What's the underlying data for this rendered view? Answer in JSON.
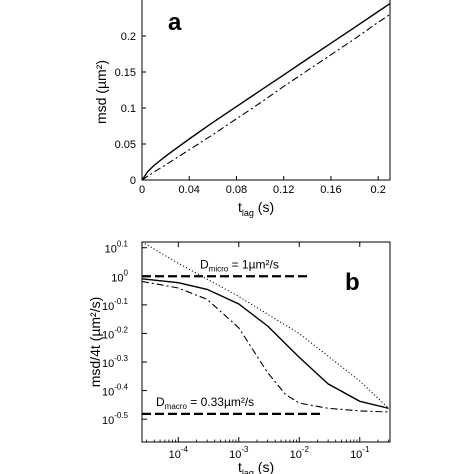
{
  "chart_data": [
    {
      "type": "line",
      "panel_label": "a",
      "xlabel_main": "t",
      "xlabel_sub": "lag",
      "xlabel_unit": "(s)",
      "ylabel": "msd  (µm²)",
      "xlim": [
        0,
        0.21
      ],
      "ylim": [
        0,
        0.25
      ],
      "xticks": [
        0,
        0.04,
        0.08,
        0.12,
        0.16,
        0.2
      ],
      "xtick_labels": [
        "0",
        "0.04",
        "0.08",
        "0.12",
        "0.16",
        "0.2"
      ],
      "yticks": [
        0,
        0.05,
        0.1,
        0.15,
        0.2
      ],
      "ytick_labels": [
        "0",
        "0.05",
        "0.1",
        "0.15",
        "0.2"
      ],
      "series": [
        {
          "style": "solid",
          "x": [
            0,
            0.005,
            0.01,
            0.02,
            0.04,
            0.06,
            0.08,
            0.1,
            0.12,
            0.14,
            0.16,
            0.18,
            0.2,
            0.21
          ],
          "y": [
            0,
            0.012,
            0.02,
            0.033,
            0.057,
            0.08,
            0.102,
            0.124,
            0.146,
            0.168,
            0.19,
            0.212,
            0.234,
            0.245
          ]
        },
        {
          "style": "dashdot",
          "x": [
            0,
            0.01,
            0.02,
            0.04,
            0.06,
            0.08,
            0.1,
            0.12,
            0.14,
            0.16,
            0.18,
            0.2,
            0.21
          ],
          "y": [
            0,
            0.011,
            0.021,
            0.042,
            0.063,
            0.085,
            0.107,
            0.13,
            0.152,
            0.174,
            0.196,
            0.219,
            0.23
          ]
        }
      ]
    },
    {
      "type": "line",
      "panel_label": "b",
      "xscale": "log",
      "yscale": "log",
      "xlabel_main": "t",
      "xlabel_sub": "lag",
      "xlabel_unit": "(s)",
      "ylabel": "msd/4t   (µm²/s)",
      "xlim_exp": [
        -4.6,
        -0.5
      ],
      "ylim_exp": [
        -0.58,
        0.12
      ],
      "xtick_exps": [
        -4,
        -3,
        -2,
        -1
      ],
      "xtick_labels": [
        "10",
        "10",
        "10",
        "10"
      ],
      "xtick_sups": [
        "-4",
        "-3",
        "-2",
        "-1"
      ],
      "ytick_exps": [
        0.1,
        0,
        -0.1,
        -0.2,
        -0.3,
        -0.4,
        -0.5
      ],
      "ytick_labels": [
        "10",
        "10",
        "10",
        "10",
        "10",
        "10",
        "10"
      ],
      "ytick_sups": [
        "0.1",
        "0",
        "-0.1",
        "-0.2",
        "-0.3",
        "-0.4",
        "-0.5"
      ],
      "annotations": {
        "d_micro": {
          "prefix": "D",
          "sub": "micro",
          "text": " = 1µm²/s",
          "value": 1
        },
        "d_macro": {
          "prefix": "D",
          "sub": "macro",
          "text": " = 0.33µm²/s",
          "value": 0.33
        }
      },
      "series": [
        {
          "style": "solid",
          "x": [
            2.5e-05,
            0.0001,
            0.0003,
            0.001,
            0.003,
            0.01,
            0.03,
            0.1,
            0.3
          ],
          "y": [
            0.98,
            0.95,
            0.9,
            0.8,
            0.67,
            0.52,
            0.42,
            0.365,
            0.345
          ]
        },
        {
          "style": "dashdot",
          "x": [
            2.5e-05,
            0.0001,
            0.0003,
            0.001,
            0.003,
            0.006,
            0.01,
            0.03,
            0.1,
            0.3
          ],
          "y": [
            0.96,
            0.91,
            0.83,
            0.66,
            0.46,
            0.385,
            0.36,
            0.345,
            0.338,
            0.335
          ]
        },
        {
          "style": "dotted",
          "x": [
            2.5e-05,
            0.0001,
            0.001,
            0.01,
            0.1,
            0.3
          ],
          "y": [
            1.32,
            1.11,
            0.85,
            0.63,
            0.43,
            0.345
          ]
        }
      ]
    }
  ]
}
